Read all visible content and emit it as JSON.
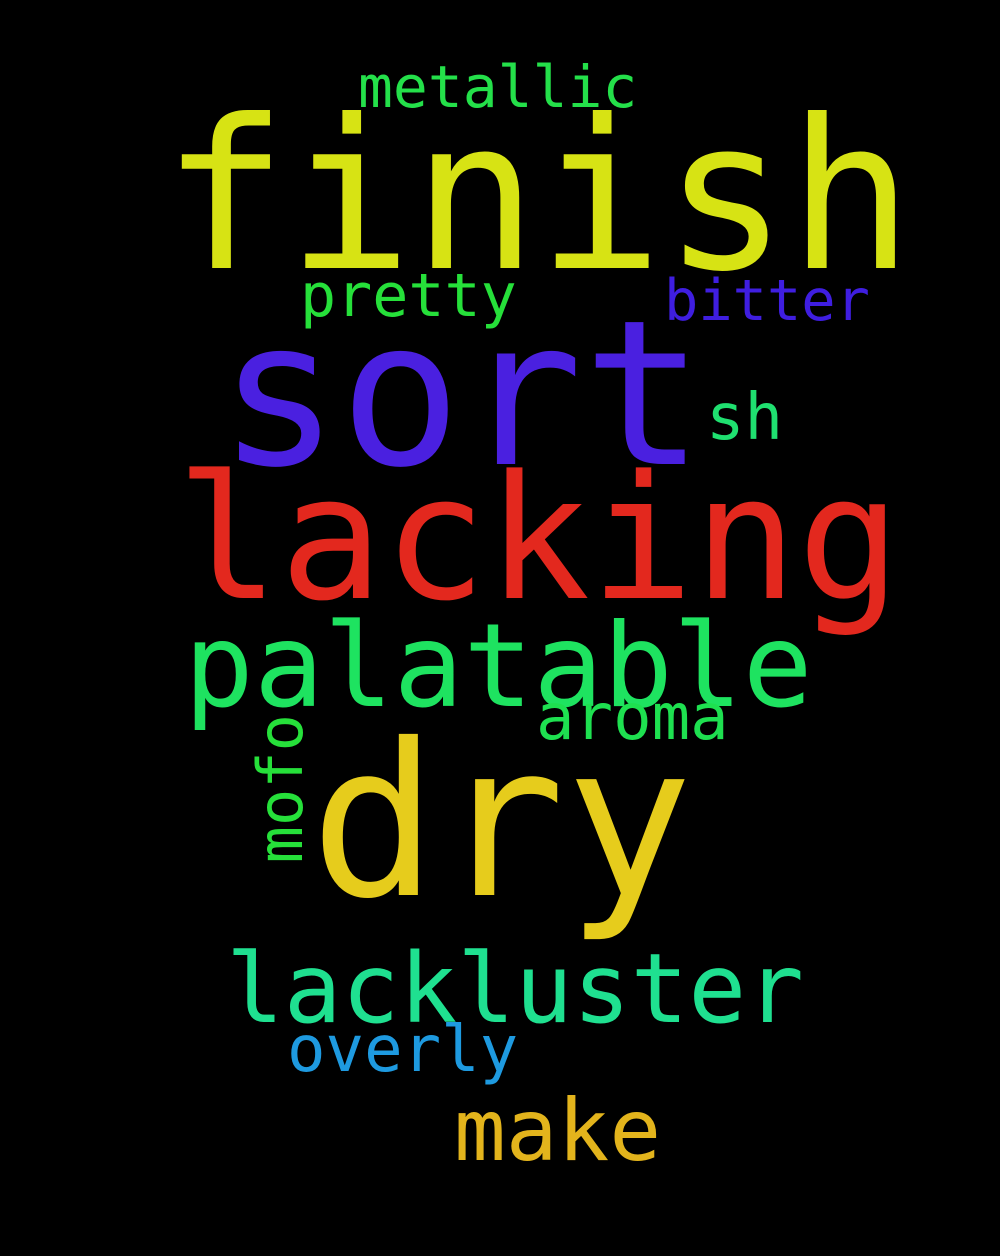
{
  "words": {
    "finish": {
      "text": "finish",
      "color": "#d7e314"
    },
    "sort": {
      "text": "sort",
      "color": "#4a20e0"
    },
    "lacking": {
      "text": "lacking",
      "color": "#e3281e"
    },
    "dry": {
      "text": "dry",
      "color": "#e6cc1c"
    },
    "palatable": {
      "text": "palatable",
      "color": "#1ee360"
    },
    "lackluster": {
      "text": "lackluster",
      "color": "#1fe090"
    },
    "metallic": {
      "text": "metallic",
      "color": "#24e04a"
    },
    "pretty": {
      "text": "pretty",
      "color": "#26e03a"
    },
    "bitter": {
      "text": "bitter",
      "color": "#3f1ee0"
    },
    "sh": {
      "text": "sh",
      "color": "#1fe070"
    },
    "aroma": {
      "text": "aroma",
      "color": "#1ee050"
    },
    "mofo": {
      "text": "mofo",
      "color": "#26e03a"
    },
    "overly": {
      "text": "overly",
      "color": "#1e9ae0"
    },
    "make": {
      "text": "make",
      "color": "#e3b41c"
    }
  }
}
